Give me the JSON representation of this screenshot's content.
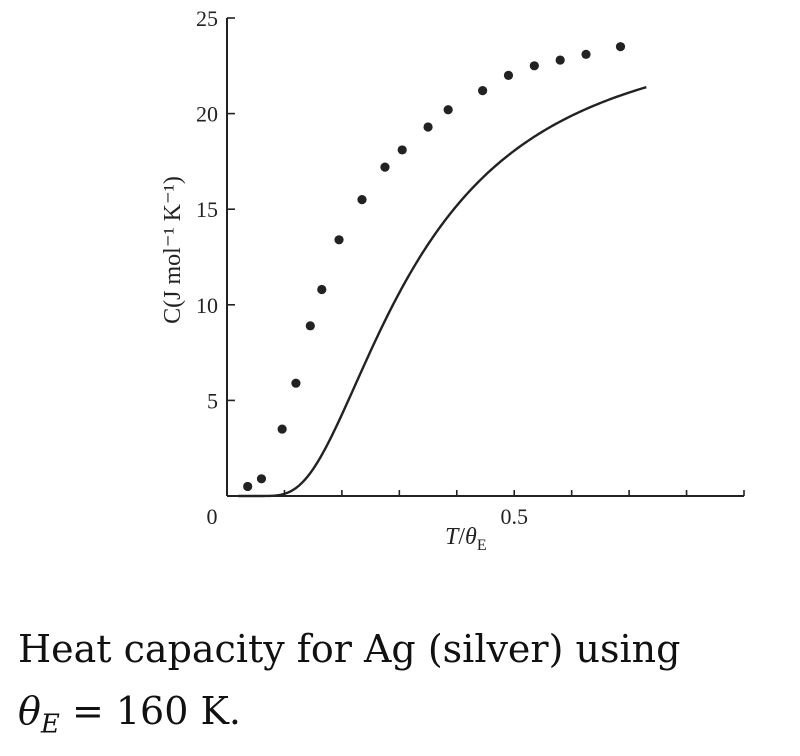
{
  "chart_data": {
    "type": "scatter",
    "xlabel_symbol": "T",
    "xlabel_slash": "/",
    "xlabel_theta": "θ",
    "xlabel_sub": "E",
    "ylabel": "C(J mol⁻¹ K⁻¹)",
    "xlim": [
      0,
      0.9
    ],
    "ylim": [
      0,
      25
    ],
    "x_ticks": [
      0,
      0.1,
      0.2,
      0.3,
      0.4,
      0.5,
      0.6,
      0.7,
      0.8,
      0.9
    ],
    "x_tick_labels": [
      {
        "value": 0,
        "label": "0"
      },
      {
        "value": 0.5,
        "label": "0.5"
      }
    ],
    "y_ticks": [
      {
        "value": 5,
        "label": "5"
      },
      {
        "value": 10,
        "label": "10"
      },
      {
        "value": 15,
        "label": "15"
      },
      {
        "value": 20,
        "label": "20"
      },
      {
        "value": 25,
        "label": "25"
      }
    ],
    "grid": false,
    "series": [
      {
        "kind": "points",
        "x": [
          0.036,
          0.06,
          0.096,
          0.12,
          0.145,
          0.165,
          0.195,
          0.235,
          0.275,
          0.305,
          0.35,
          0.385,
          0.445,
          0.49,
          0.535,
          0.58,
          0.625,
          0.685
        ],
        "y": [
          0.5,
          0.9,
          3.5,
          5.9,
          8.9,
          10.8,
          13.4,
          15.5,
          17.2,
          18.1,
          19.3,
          20.2,
          21.2,
          22.0,
          22.5,
          22.8,
          23.1,
          23.5
        ]
      },
      {
        "kind": "curve",
        "model": "einstein",
        "x_range": [
          0.02,
          0.73
        ]
      }
    ]
  },
  "caption": {
    "text": "Heat capacity for Ag (silver) using",
    "theta": "θ",
    "theta_sub": "E",
    "rest": " = 160 K."
  }
}
